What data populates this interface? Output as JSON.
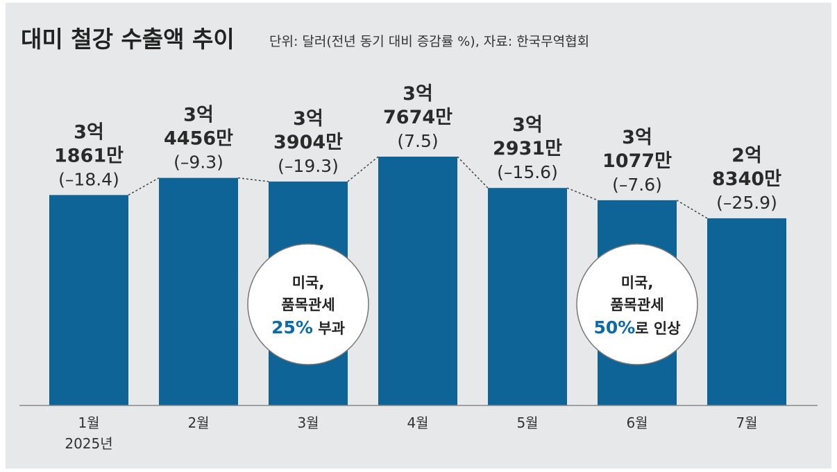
{
  "title": "대미 철강 수출액 추이",
  "subtitle": "단위: 달러(전년 동기 대비 증감률 %), 자료: 한국무역협회",
  "colors": {
    "background": "#e6e8ea",
    "bar": "#0e6496",
    "accent": "#0c6aa6",
    "baseline": "#888888",
    "connector": "#444444"
  },
  "x_year_label": "2025년",
  "annotations": [
    {
      "month_index": 2,
      "line1": "미국,",
      "line2": "품목관세",
      "highlight": "25%",
      "suffix": " 부과"
    },
    {
      "month_index": 5,
      "line1": "미국,",
      "line2": "품목관세",
      "highlight": "50%",
      "suffix": "로 인상"
    }
  ],
  "chart_data": {
    "type": "bar",
    "categories": [
      "1월",
      "2월",
      "3월",
      "4월",
      "5월",
      "6월",
      "7월"
    ],
    "values": [
      318610000,
      344560000,
      339040000,
      376740000,
      329310000,
      310770000,
      283400000
    ],
    "change_pct": [
      -18.4,
      -9.3,
      -19.3,
      7.5,
      -15.6,
      -7.6,
      -25.9
    ],
    "value_labels": [
      [
        "3억",
        "1861만"
      ],
      [
        "3억",
        "4456만"
      ],
      [
        "3억",
        "3904만"
      ],
      [
        "3억",
        "7674만"
      ],
      [
        "3억",
        "2931만"
      ],
      [
        "3억",
        "1077만"
      ],
      [
        "2억",
        "8340만"
      ]
    ],
    "change_labels": [
      "(–18.4)",
      "(–9.3)",
      "(–19.3)",
      "(7.5)",
      "(–15.6)",
      "(–7.6)",
      "(–25.9)"
    ],
    "title": "대미 철강 수출액 추이",
    "ylabel": "",
    "xlabel": "",
    "grid": false,
    "legend": "none",
    "bar_color": "#0e6496"
  }
}
